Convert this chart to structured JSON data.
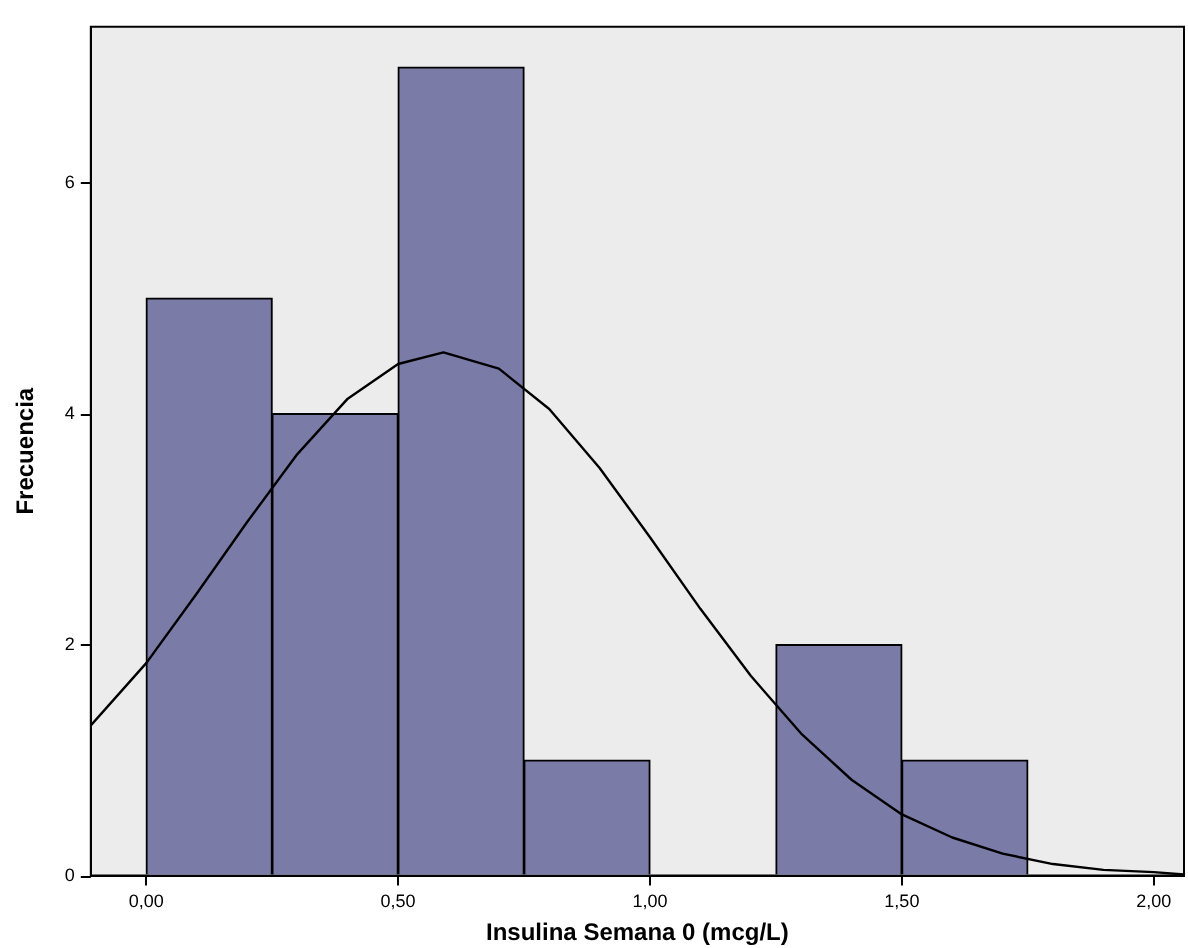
{
  "chart_data": {
    "type": "histogram",
    "xlabel": "Insulina Semana 0 (mcg/L)",
    "ylabel": "Frecuencia",
    "bins": [
      0,
      0.25,
      0.5,
      0.75,
      1,
      1.25,
      1.5,
      1.75
    ],
    "values": [
      5,
      4,
      7,
      1,
      0,
      2,
      1
    ],
    "color": "#7b7ba8",
    "series": [
      {
        "type": "line",
        "color": "#000000",
        "x": [
          -0.11,
          0,
          0.1,
          0.2,
          0.3,
          0.4,
          0.5,
          0.59,
          0.7,
          0.8,
          0.9,
          1.0,
          1.1,
          1.2,
          1.3,
          1.4,
          1.5,
          1.6,
          1.7,
          1.8,
          1.9,
          2.0,
          2.06
        ],
        "values": [
          1.3,
          1.84,
          2.44,
          3.06,
          3.65,
          4.13,
          4.43,
          4.53,
          4.39,
          4.04,
          3.53,
          2.93,
          2.31,
          1.73,
          1.23,
          0.83,
          0.53,
          0.33,
          0.19,
          0.1,
          0.05,
          0.03,
          0.01
        ]
      }
    ],
    "xlim": [
      -0.11,
      2.06
    ],
    "ylim": [
      0,
      7.35
    ],
    "xticks": [
      {
        "value": 0,
        "label": "0,00"
      },
      {
        "value": 0.5,
        "label": "0,50"
      },
      {
        "value": 1,
        "label": "1,00"
      },
      {
        "value": 1.5,
        "label": "1,50"
      },
      {
        "value": 2,
        "label": "2,00"
      }
    ],
    "yticks": [
      0,
      2,
      4,
      6
    ],
    "grid": false,
    "legend": false,
    "marker": "none",
    "line_style": "solid"
  }
}
